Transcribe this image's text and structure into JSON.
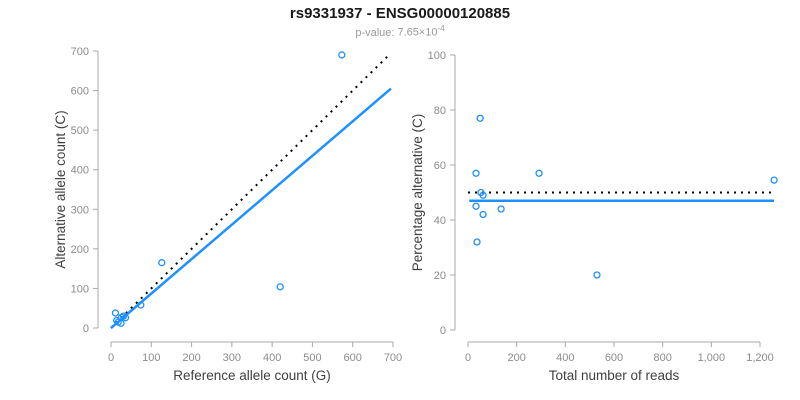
{
  "header": {
    "title": "rs9331937 - ENSG00000120885",
    "pvalue_label": "p-value:",
    "pvalue_base": "7.65×10",
    "pvalue_exponent": "-4"
  },
  "colors": {
    "accent_blue": "#1E90FF",
    "dotted_black": "#000000",
    "axis_line": "#a8a8a8",
    "tick_label": "#8c8c8c",
    "axis_label": "#404040",
    "title": "#1a1a1a",
    "subtitle": "#9a9a9a",
    "background": "#ffffff"
  },
  "chart_data": [
    {
      "type": "scatter",
      "position": "left",
      "xlabel": "Reference allele count (G)",
      "ylabel": "Alternative allele count (C)",
      "xlim": [
        0,
        700
      ],
      "ylim": [
        0,
        700
      ],
      "xticks": [
        0,
        100,
        200,
        300,
        400,
        500,
        600,
        700
      ],
      "xtick_labels": [
        "0",
        "100",
        "200",
        "300",
        "400",
        "500",
        "600",
        "700"
      ],
      "yticks": [
        0,
        100,
        200,
        300,
        400,
        500,
        600,
        700
      ],
      "ytick_labels": [
        "0",
        "100",
        "200",
        "300",
        "400",
        "500",
        "600",
        "700"
      ],
      "grid": false,
      "legend": false,
      "marker": "open-circle",
      "points": [
        [
          11,
          38
        ],
        [
          14,
          19
        ],
        [
          18,
          15
        ],
        [
          26,
          27
        ],
        [
          31,
          30
        ],
        [
          36,
          26
        ],
        [
          25,
          12
        ],
        [
          74,
          58
        ],
        [
          126,
          165
        ],
        [
          420,
          104
        ],
        [
          573,
          690
        ]
      ],
      "lines": [
        {
          "name": "identity-line",
          "style": "dotted",
          "color": "black",
          "points": [
            [
              0,
              0
            ],
            [
              690,
              690
            ]
          ]
        },
        {
          "name": "fit-line",
          "style": "solid",
          "color": "blue",
          "points": [
            [
              0,
              0
            ],
            [
              695,
              605
            ]
          ]
        }
      ]
    },
    {
      "type": "scatter",
      "position": "right",
      "xlabel": "Total number of reads",
      "ylabel": "Percentage alternative (C)",
      "xlim": [
        0,
        1200
      ],
      "ylim": [
        0,
        100
      ],
      "xticks": [
        0,
        200,
        400,
        600,
        800,
        1000,
        1200
      ],
      "xtick_labels": [
        "0",
        "200",
        "400",
        "600",
        "800",
        "1,000",
        "1,200"
      ],
      "yticks": [
        0,
        20,
        40,
        60,
        80,
        100
      ],
      "ytick_labels": [
        "0",
        "20",
        "40",
        "60",
        "80",
        "100"
      ],
      "grid": false,
      "legend": false,
      "marker": "open-circle",
      "points": [
        [
          50,
          77
        ],
        [
          33,
          57
        ],
        [
          292,
          57
        ],
        [
          1258,
          54.5
        ],
        [
          53,
          50
        ],
        [
          62,
          49
        ],
        [
          33,
          45
        ],
        [
          136,
          44
        ],
        [
          62,
          42
        ],
        [
          37,
          32
        ],
        [
          530,
          20
        ]
      ],
      "lines": [
        {
          "name": "expected-50pct-line",
          "style": "dotted",
          "color": "black",
          "points": [
            [
              0,
              50
            ],
            [
              1245,
              50
            ]
          ]
        },
        {
          "name": "fit-line",
          "style": "solid",
          "color": "blue",
          "points": [
            [
              5,
              47
            ],
            [
              1258,
              47
            ]
          ]
        }
      ]
    }
  ]
}
